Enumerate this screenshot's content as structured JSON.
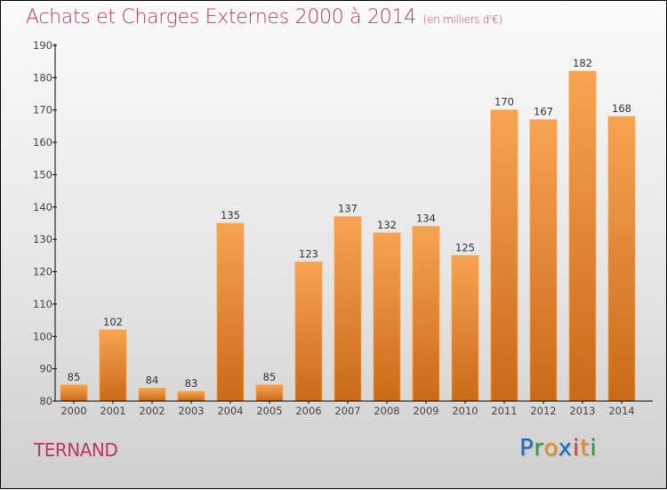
{
  "header": {
    "title": "Achats et Charges Externes 2000 à 2014",
    "unit": "(en milliers d'€)"
  },
  "commune": "TERNAND",
  "logo": {
    "letters": [
      {
        "ch": "P",
        "color": "#1a6fc4"
      },
      {
        "ch": "r",
        "color": "#2e9a3a"
      },
      {
        "ch": "o",
        "color": "#f08a1c"
      },
      {
        "ch": "x",
        "color": "#1a6fc4"
      },
      {
        "ch": "i",
        "color": "#e8362b"
      },
      {
        "ch": "t",
        "color": "#f08a1c"
      },
      {
        "ch": "i",
        "color": "#2e9a3a"
      }
    ]
  },
  "colors": {
    "title": "#c0365f",
    "bar_top": "#f7a452",
    "bar_bottom": "#c96a18",
    "axis": "#000000"
  },
  "chart_data": {
    "type": "bar",
    "title": "Achats et Charges Externes 2000 à 2014",
    "subtitle": "(en milliers d'€)",
    "xlabel": "",
    "ylabel": "",
    "categories": [
      "2000",
      "2001",
      "2002",
      "2003",
      "2004",
      "2005",
      "2006",
      "2007",
      "2008",
      "2009",
      "2010",
      "2011",
      "2012",
      "2013",
      "2014"
    ],
    "values": [
      85,
      102,
      84,
      83,
      135,
      85,
      123,
      137,
      132,
      134,
      125,
      170,
      167,
      182,
      168
    ],
    "ylim": [
      80,
      190
    ],
    "yticks": [
      80,
      90,
      100,
      110,
      120,
      130,
      140,
      150,
      160,
      170,
      180,
      190
    ],
    "grid": false,
    "legend": "none",
    "data_labels": true
  }
}
